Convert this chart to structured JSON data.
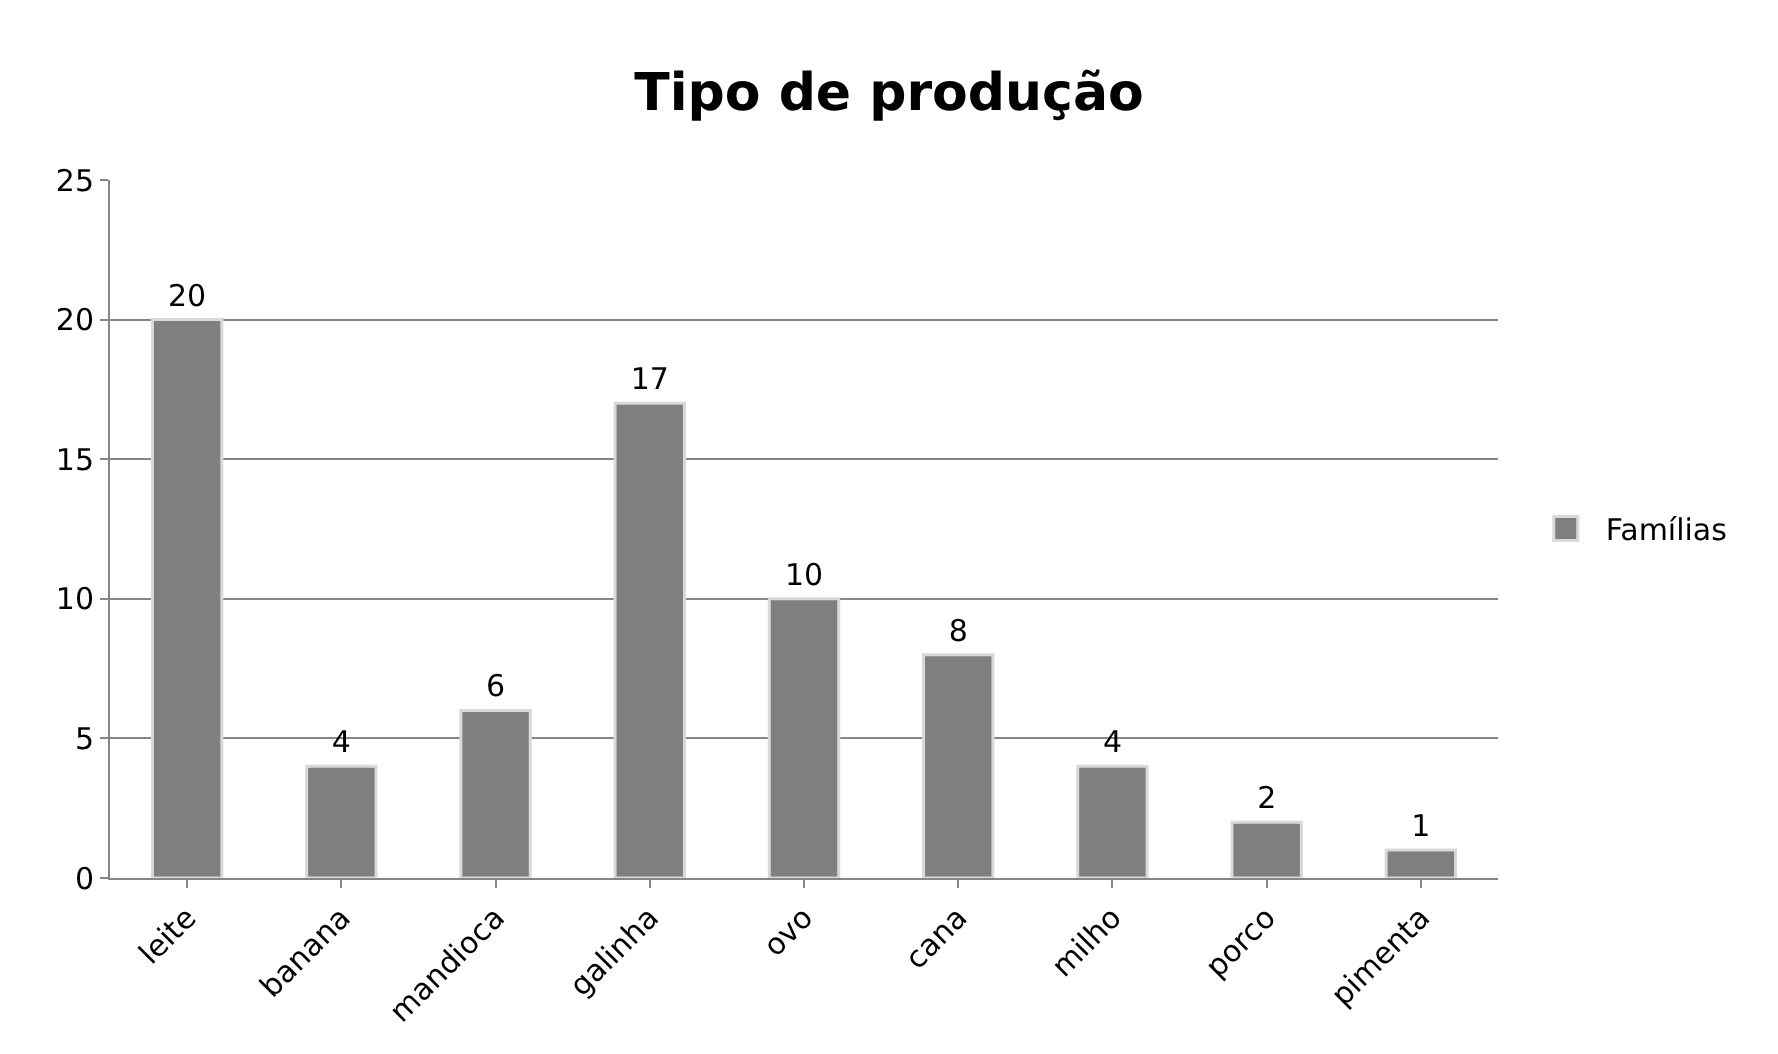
{
  "chart_data": {
    "type": "bar",
    "title": "Tipo de produção",
    "categories": [
      "leite",
      "banana",
      "mandioca",
      "galinha",
      "ovo",
      "cana",
      "milho",
      "porco",
      "pimenta"
    ],
    "series": [
      {
        "name": "Famílias",
        "color": "#7f7f7f",
        "values": [
          20,
          4,
          6,
          17,
          10,
          8,
          4,
          2,
          1
        ]
      }
    ],
    "ylim": [
      0,
      25
    ],
    "yticks": [
      0,
      5,
      10,
      15,
      20,
      25
    ],
    "grid": "y",
    "legend": "right",
    "data_labels": true
  }
}
